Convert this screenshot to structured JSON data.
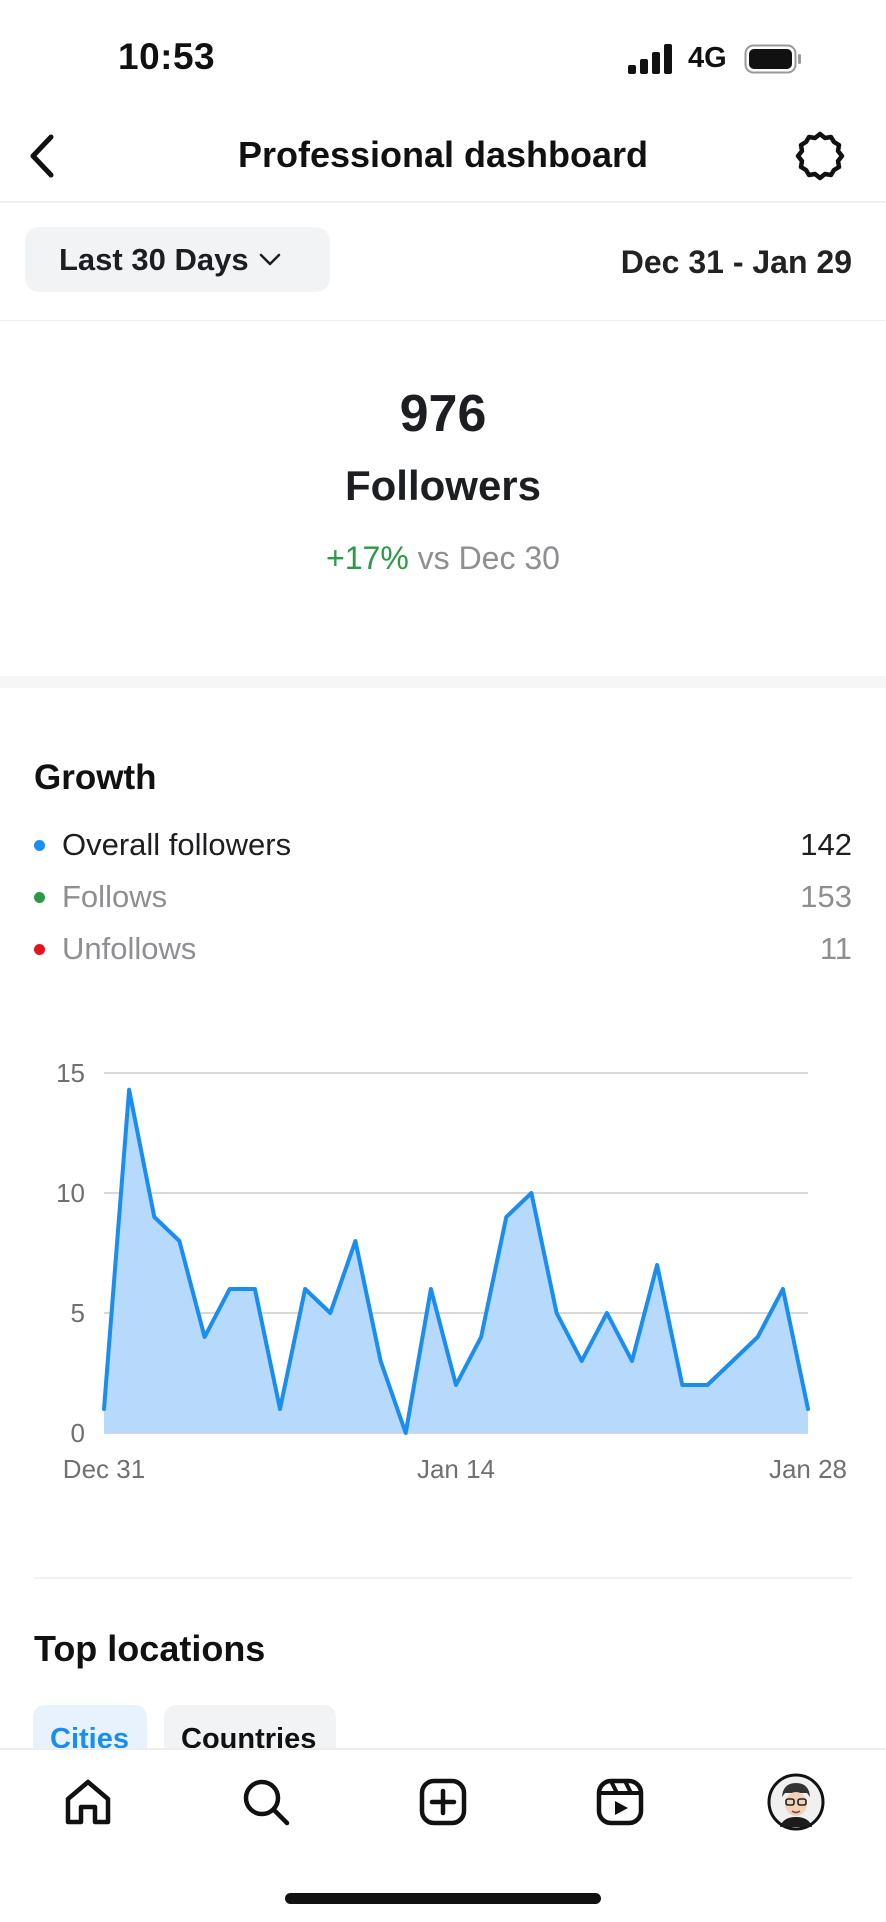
{
  "status_bar": {
    "time": "10:53",
    "network": "4G"
  },
  "header": {
    "title": "Professional dashboard",
    "back_icon": "chevron-left-icon",
    "settings_icon": "gear-icon"
  },
  "range": {
    "selected": "Last 30 Days",
    "dates": "Dec 31 - Jan 29"
  },
  "followers": {
    "count": "976",
    "label": "Followers",
    "change": "+17%",
    "compare": "vs Dec 30"
  },
  "growth": {
    "title": "Growth",
    "legend": [
      {
        "label": "Overall followers",
        "value": "142",
        "color": "#1a8df0",
        "text_color": "#1c1e21"
      },
      {
        "label": "Follows",
        "value": "153",
        "color": "#2a9a48",
        "text_color": "#8e8e93"
      },
      {
        "label": "Unfollows",
        "value": "11",
        "color": "#e4141b",
        "text_color": "#8e8e93"
      }
    ]
  },
  "chart_data": {
    "type": "area",
    "x_tick_labels": [
      "Dec 31",
      "Jan 14",
      "Jan 28"
    ],
    "y_ticks": [
      0,
      5,
      10,
      15
    ],
    "ylim": [
      0,
      15
    ],
    "series": [
      {
        "values": [
          1,
          14.3,
          9,
          8,
          4,
          6,
          6,
          1,
          6,
          5,
          8,
          3,
          0,
          6,
          2,
          4,
          9,
          10,
          5,
          3,
          5,
          3,
          7,
          2,
          2,
          3,
          4,
          6,
          1
        ],
        "line_color": "#1a8df0",
        "fill_color": "#b6d9fc"
      }
    ],
    "grid": true
  },
  "locations": {
    "title": "Top locations",
    "tabs": [
      "Cities",
      "Countries"
    ]
  },
  "nav": [
    "home-icon",
    "search-icon",
    "create-icon",
    "reels-icon",
    "profile-avatar"
  ]
}
